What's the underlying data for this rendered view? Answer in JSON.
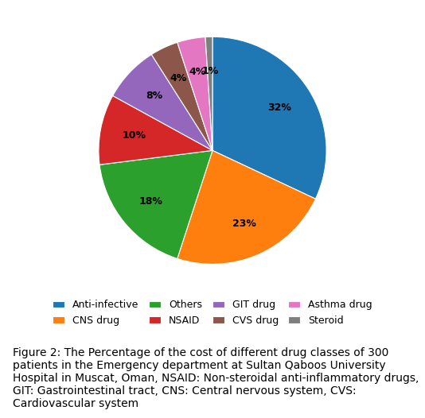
{
  "chart_data": {
    "type": "pie",
    "categories": [
      "Anti-infective",
      "CNS drug",
      "Others",
      "NSAID",
      "GIT drug",
      "CVS drug",
      "Asthma drug",
      "Steroid"
    ],
    "values": [
      32,
      23,
      18,
      10,
      8,
      4,
      4,
      1
    ],
    "value_labels": [
      "32%",
      "23%",
      "18%",
      "10%",
      "8%",
      "4%",
      "4%",
      "1%"
    ],
    "data_labels": true,
    "legend": "lower center",
    "annotations": [
      "Figure 2: The Percentage of the cost of different drug classes of 300 patients in the Emergency department at Sultan Qaboos University Hospital in Muscat, Oman, NSAID: Non-steroidal anti-inflammatory drugs, GIT: Gastrointestinal tract, CNS: Central nervous system, CVS: Cardiovascular system"
    ]
  }
}
